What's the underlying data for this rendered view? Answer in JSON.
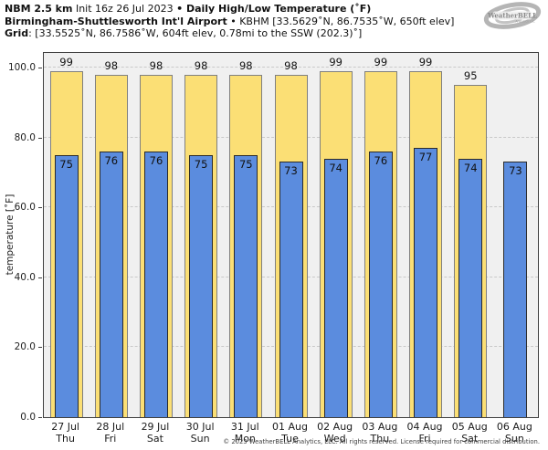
{
  "header": {
    "line1_bold1": "NBM 2.5 km",
    "line1_regular": " Init 16z 26 Jul 2023 ",
    "line1_bold2": "• Daily High/Low Temperature (˚F)",
    "line2_bold": "Birmingham-Shuttlesworth Int'l Airport",
    "line2_regular": " • KBHM [33.5629˚N, 86.7535˚W, 650ft elev]",
    "line3_bold": "Grid",
    "line3_regular": ": [33.5525˚N, 86.7586˚W, 604ft elev, 0.78mi to the SSW (202.3)˚]"
  },
  "logo": {
    "brand": "WeatherBELL",
    "sub": "Analytics LLC"
  },
  "chart_data": {
    "type": "bar",
    "title": "NBM 2.5 km Init 16z 26 Jul 2023 • Daily High/Low Temperature (˚F)",
    "station": "Birmingham-Shuttlesworth Int'l Airport • KBHM [33.5629˚N, 86.7535˚W, 650ft elev]",
    "grid_point": "[33.5525˚N, 86.7586˚W, 604ft elev, 0.78mi to the SSW (202.3)˚]",
    "xlabel": "",
    "ylabel": "temperature [˚F]",
    "ylim": [
      0,
      104.2
    ],
    "yticks": [
      0,
      20,
      40,
      60,
      80,
      100
    ],
    "ytick_labels": [
      "0.0",
      "20.0",
      "40.0",
      "60.0",
      "80.0",
      "100.0"
    ],
    "grid": true,
    "legend_position": "none",
    "categories": [
      {
        "date": "27 Jul",
        "day": "Thu"
      },
      {
        "date": "28 Jul",
        "day": "Fri"
      },
      {
        "date": "29 Jul",
        "day": "Sat"
      },
      {
        "date": "30 Jul",
        "day": "Sun"
      },
      {
        "date": "31 Jul",
        "day": "Mon"
      },
      {
        "date": "01 Aug",
        "day": "Tue"
      },
      {
        "date": "02 Aug",
        "day": "Wed"
      },
      {
        "date": "03 Aug",
        "day": "Thu"
      },
      {
        "date": "04 Aug",
        "day": "Fri"
      },
      {
        "date": "05 Aug",
        "day": "Sat"
      },
      {
        "date": "06 Aug",
        "day": "Sun"
      }
    ],
    "series": [
      {
        "name": "daily-high",
        "color": "#fbdf75",
        "border_color": "#7f7f7f",
        "values": [
          99,
          98,
          98,
          98,
          98,
          98,
          99,
          99,
          99,
          95,
          null
        ]
      },
      {
        "name": "daily-low",
        "color": "#5b8cde",
        "border_color": "#2b2b2b",
        "values": [
          75,
          76,
          76,
          75,
          75,
          73,
          74,
          76,
          77,
          74,
          73
        ]
      }
    ]
  },
  "footer": {
    "copyright": "© 2023 WeatherBELL Analytics, LLC. All rights reserved. License required for commercial distribution."
  }
}
